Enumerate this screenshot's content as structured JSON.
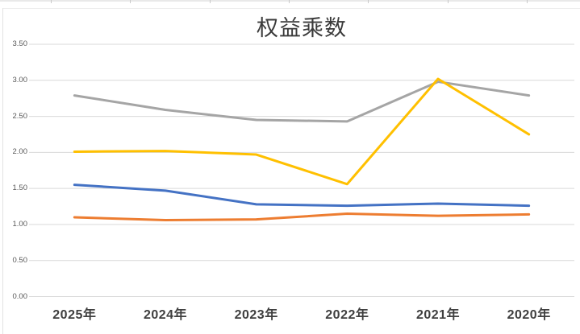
{
  "chart": {
    "title": "权益乘数"
  },
  "chart_data": {
    "type": "line",
    "title": "权益乘数",
    "categories": [
      "2025年",
      "2024年",
      "2023年",
      "2022年",
      "2021年",
      "2020年"
    ],
    "series": [
      {
        "name": "blue-series",
        "color": "#4472C4",
        "values": [
          1.55,
          1.47,
          1.28,
          1.26,
          1.29,
          1.26
        ]
      },
      {
        "name": "orange-series",
        "color": "#ED7D31",
        "values": [
          1.1,
          1.06,
          1.07,
          1.15,
          1.12,
          1.14
        ]
      },
      {
        "name": "gray-series",
        "color": "#A5A5A5",
        "values": [
          2.79,
          2.59,
          2.45,
          2.43,
          2.98,
          2.79
        ]
      },
      {
        "name": "yellow-series",
        "color": "#FFC000",
        "values": [
          2.01,
          2.02,
          1.97,
          1.56,
          3.02,
          2.25
        ]
      }
    ],
    "xlabel": "",
    "ylabel": "",
    "ylim": [
      0,
      3.5
    ],
    "y_tick_step": 0.5,
    "y_tick_labels": [
      "3.50",
      "3.00",
      "2.50",
      "2.00",
      "1.50",
      "1.00",
      "0.50",
      "0.00"
    ],
    "grid": true,
    "gridline_color": "#d9d9d9",
    "legend": "none"
  }
}
